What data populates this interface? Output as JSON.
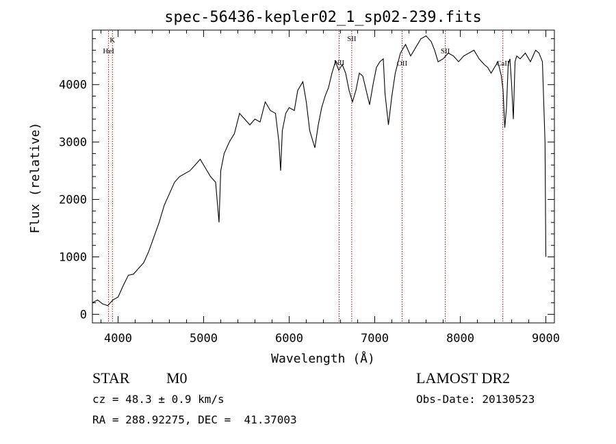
{
  "chart_data": {
    "type": "line",
    "title": "spec-56436-kepler02_1_sp02-239.fits",
    "xlabel": "Wavelength (Å)",
    "ylabel": "Flux (relative)",
    "xlim": [
      3700,
      9100
    ],
    "ylim": [
      -150,
      4950
    ],
    "x_ticks": [
      4000,
      5000,
      6000,
      7000,
      8000,
      9000
    ],
    "y_ticks": [
      0,
      1000,
      2000,
      3000,
      4000
    ],
    "grid": false,
    "series": [
      {
        "color": "#000000",
        "x": [
          3700,
          3760,
          3820,
          3880,
          3940,
          4000,
          4060,
          4120,
          4180,
          4240,
          4300,
          4360,
          4420,
          4480,
          4540,
          4600,
          4660,
          4720,
          4780,
          4840,
          4900,
          4960,
          5020,
          5080,
          5140,
          5180,
          5200,
          5240,
          5300,
          5360,
          5420,
          5480,
          5540,
          5600,
          5660,
          5720,
          5780,
          5840,
          5880,
          5900,
          5920,
          5960,
          6000,
          6060,
          6100,
          6160,
          6200,
          6240,
          6280,
          6300,
          6340,
          6380,
          6420,
          6460,
          6500,
          6540,
          6580,
          6620,
          6660,
          6700,
          6740,
          6780,
          6820,
          6860,
          6900,
          6940,
          6980,
          7020,
          7060,
          7100,
          7120,
          7160,
          7200,
          7240,
          7300,
          7360,
          7420,
          7480,
          7540,
          7600,
          7660,
          7700,
          7740,
          7800,
          7860,
          7920,
          7980,
          8040,
          8100,
          8160,
          8220,
          8280,
          8320,
          8360,
          8400,
          8440,
          8480,
          8500,
          8520,
          8540,
          8560,
          8580,
          8600,
          8620,
          8640,
          8660,
          8700,
          8760,
          8820,
          8880,
          8920,
          8960,
          8990,
          9000
        ],
        "y": [
          200,
          250,
          180,
          150,
          250,
          300,
          500,
          680,
          700,
          800,
          900,
          1100,
          1350,
          1600,
          1900,
          2100,
          2300,
          2400,
          2450,
          2500,
          2600,
          2700,
          2550,
          2400,
          2300,
          1600,
          2500,
          2800,
          3000,
          3150,
          3500,
          3400,
          3300,
          3400,
          3350,
          3700,
          3550,
          3500,
          3000,
          2500,
          3200,
          3500,
          3600,
          3550,
          3900,
          4050,
          3700,
          3200,
          3000,
          2900,
          3300,
          3600,
          3800,
          3950,
          4200,
          4400,
          4250,
          4350,
          4200,
          3900,
          3700,
          3900,
          4200,
          4150,
          3900,
          3650,
          4000,
          4300,
          4400,
          4450,
          3850,
          3300,
          3800,
          4200,
          4550,
          4700,
          4500,
          4650,
          4800,
          4850,
          4750,
          4600,
          4400,
          4450,
          4550,
          4500,
          4400,
          4500,
          4550,
          4600,
          4450,
          4350,
          4300,
          4200,
          4300,
          4400,
          4150,
          3900,
          3250,
          3600,
          4350,
          4450,
          4000,
          3400,
          4400,
          4500,
          4450,
          4550,
          4400,
          4600,
          4550,
          4400,
          3000,
          1000
        ]
      }
    ],
    "annotations": [
      {
        "label": "K",
        "x": 3934
      },
      {
        "label": "HeI",
        "x": 3889
      },
      {
        "label": "NII",
        "x": 6584
      },
      {
        "label": "SII",
        "x": 6731
      },
      {
        "label": "OII",
        "x": 7320
      },
      {
        "label": "SII",
        "x": 7825
      },
      {
        "label": "CaII",
        "x": 8498
      }
    ],
    "annotation_color": "#a00000"
  },
  "info": {
    "class_label": "STAR",
    "subclass_label": "M0",
    "survey": "LAMOST DR2",
    "cz_line": "cz = 48.3 ± 0.9 km/s",
    "obs_date": "Obs-Date: 20130523",
    "coords": "RA = 288.92275, DEC =  41.37003"
  }
}
